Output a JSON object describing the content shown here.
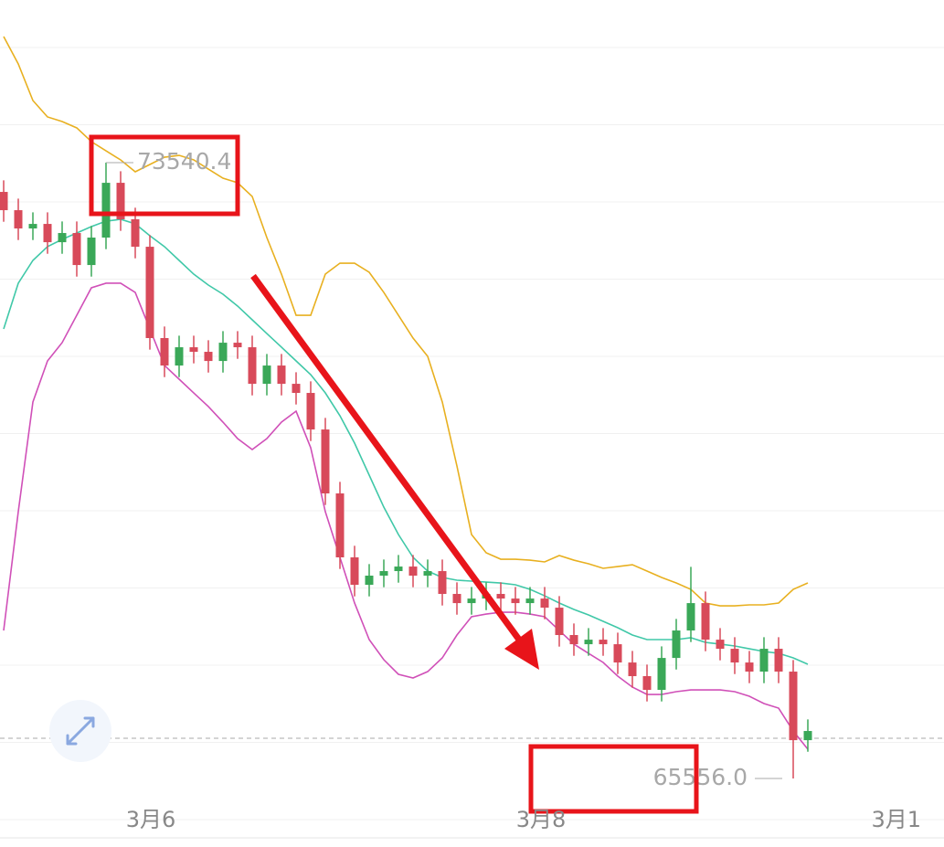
{
  "chart_data": {
    "type": "candlestick",
    "up_color": "#3aa858",
    "down_color": "#d84a5a",
    "ylim": [
      64668,
      75649
    ],
    "open": [
      73161,
      72924,
      72687,
      72746,
      72509,
      72628,
      72213,
      72569,
      73279,
      72806,
      72450,
      71266,
      70910,
      71147,
      71088,
      70969,
      71206,
      71147,
      70673,
      70910,
      70673,
      70555,
      70081,
      69252,
      68423,
      68067,
      68186,
      68245,
      68304,
      68186,
      68245,
      67949,
      67830,
      67889,
      67949,
      67889,
      67830,
      67889,
      67771,
      67416,
      67297,
      67356,
      67297,
      67060,
      66883,
      66705,
      67119,
      67475,
      67830,
      67356,
      67238,
      67060,
      66942,
      67238,
      66942,
      66053
    ],
    "high": [
      73311,
      73074,
      72896,
      72896,
      72778,
      72778,
      72719,
      73540.4,
      73429,
      72956,
      72600,
      71416,
      71297,
      71297,
      71238,
      71356,
      71356,
      71297,
      71060,
      71060,
      70823,
      70705,
      70231,
      69402,
      68573,
      68336,
      68395,
      68454,
      68454,
      68395,
      68395,
      68099,
      68039,
      68099,
      68099,
      68039,
      68039,
      68039,
      67921,
      67566,
      67506,
      67506,
      67447,
      67210,
      67033,
      67269,
      67625,
      68300,
      67980,
      67506,
      67388,
      67210,
      67388,
      67388,
      67092,
      66322
    ],
    "low": [
      72774,
      72537,
      72537,
      72359,
      72359,
      72063,
      72063,
      72419,
      72656,
      72300,
      71116,
      70760,
      70760,
      70938,
      70819,
      70819,
      70997,
      70523,
      70523,
      70523,
      70405,
      69931,
      69102,
      68273,
      67917,
      67917,
      68036,
      68095,
      68036,
      68036,
      67799,
      67680,
      67680,
      67739,
      67739,
      67680,
      67680,
      67621,
      67266,
      67147,
      67147,
      67147,
      66910,
      66733,
      66555,
      66555,
      66969,
      67325,
      67206,
      67088,
      66910,
      66792,
      66792,
      66792,
      65556.0,
      65903
    ],
    "close": [
      72924,
      72687,
      72746,
      72509,
      72628,
      72213,
      72569,
      73279,
      72806,
      72450,
      71266,
      70910,
      71147,
      71088,
      70969,
      71206,
      71147,
      70673,
      70910,
      70673,
      70555,
      70081,
      69252,
      68423,
      68067,
      68186,
      68245,
      68304,
      68186,
      68245,
      67949,
      67830,
      67889,
      67949,
      67889,
      67830,
      67889,
      67771,
      67416,
      67297,
      67356,
      67297,
      67060,
      66883,
      66705,
      67119,
      67475,
      67830,
      67356,
      67238,
      67060,
      66942,
      67238,
      66942,
      66053,
      66172
    ],
    "bands": [
      {
        "color": "#e8b020",
        "values": [
          75175,
          74820,
          74346,
          74133,
          74073,
          73991,
          73813,
          73694,
          73576,
          73422,
          73517,
          73611,
          73635,
          73576,
          73457,
          73339,
          73280,
          73102,
          72569,
          72095,
          71562,
          71562,
          72095,
          72237,
          72237,
          72119,
          71858,
          71562,
          71266,
          71029,
          70437,
          69608,
          68719,
          68482,
          68399,
          68399,
          68387,
          68364,
          68447,
          68387,
          68340,
          68281,
          68304,
          68328,
          68245,
          68162,
          68091,
          68008,
          67831,
          67795,
          67795,
          67807,
          67807,
          67831,
          68008,
          68091
        ]
      },
      {
        "color": "#40c8a8",
        "values": [
          71384,
          71977,
          72273,
          72451,
          72545,
          72628,
          72711,
          72782,
          72806,
          72747,
          72593,
          72451,
          72273,
          72095,
          71953,
          71835,
          71681,
          71503,
          71325,
          71148,
          70970,
          70792,
          70555,
          70259,
          69904,
          69489,
          69074,
          68719,
          68423,
          68245,
          68162,
          68127,
          68115,
          68103,
          68091,
          68068,
          68008,
          67925,
          67831,
          67748,
          67677,
          67594,
          67511,
          67416,
          67357,
          67357,
          67357,
          67381,
          67321,
          67298,
          67274,
          67238,
          67203,
          67179,
          67120,
          67037
        ]
      },
      {
        "color": "#d050b8",
        "values": [
          67475,
          69015,
          70437,
          70970,
          71207,
          71562,
          71918,
          71977,
          71977,
          71858,
          71384,
          70911,
          70733,
          70555,
          70378,
          70176,
          69963,
          69821,
          69963,
          70176,
          70318,
          69844,
          69015,
          68423,
          67831,
          67357,
          67096,
          66907,
          66859,
          66942,
          67120,
          67416,
          67653,
          67688,
          67712,
          67712,
          67688,
          67653,
          67475,
          67298,
          67179,
          67061,
          66883,
          66741,
          66646,
          66646,
          66682,
          66705,
          66705,
          66705,
          66682,
          66622,
          66528,
          66468,
          66172,
          65935
        ]
      }
    ],
    "annotations": [
      {
        "value": 73540.4,
        "label": "73540.4"
      },
      {
        "value": 65556.0,
        "label": "65556.0"
      }
    ],
    "x_labels": [
      "3月6",
      "3月8",
      "3月1"
    ]
  }
}
